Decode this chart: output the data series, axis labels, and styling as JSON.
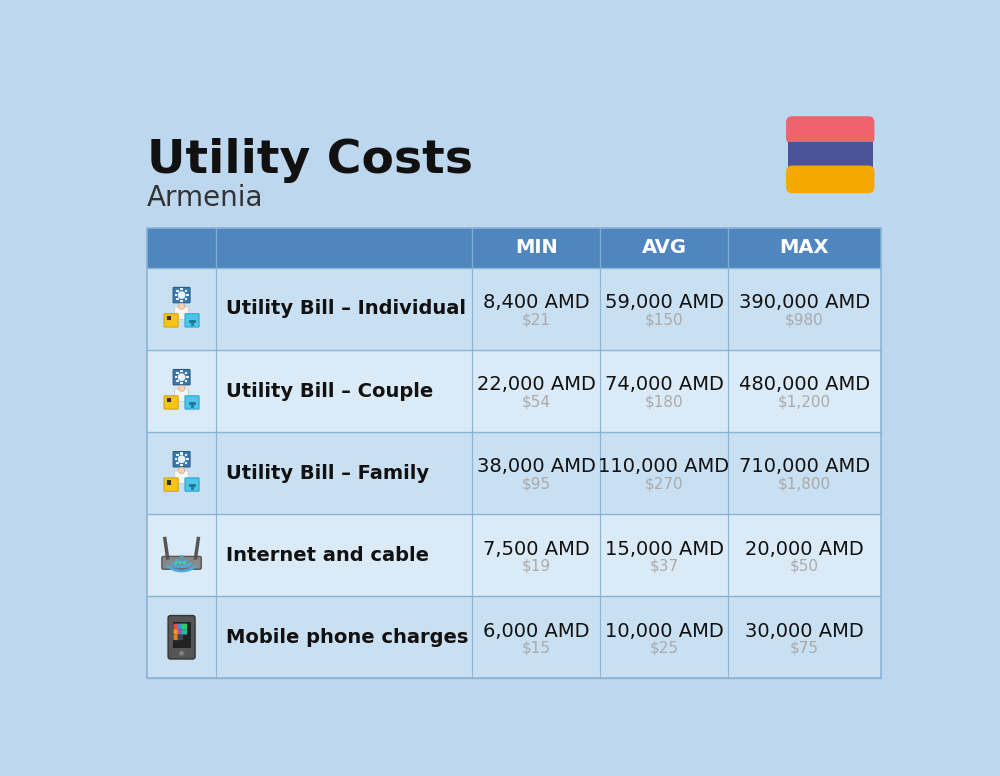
{
  "title": "Utility Costs",
  "subtitle": "Armenia",
  "background_color": "#bdd7ee",
  "header_bg_color": "#4f86c0",
  "header_text_color": "#ffffff",
  "row_bg_color_1": "#c9dff2",
  "row_bg_color_2": "#daeaf7",
  "separator_color": "#8ab4d4",
  "flag_colors": [
    "#f0626e",
    "#4c5399",
    "#f5a800"
  ],
  "title_fontsize": 34,
  "subtitle_fontsize": 20,
  "header_fontsize": 14,
  "label_fontsize": 14,
  "value_fontsize": 14,
  "usd_fontsize": 11,
  "usd_color": "#aaaaaa",
  "rows": [
    {
      "label": "Utility Bill – Individual",
      "min_amd": "8,400 AMD",
      "min_usd": "$21",
      "avg_amd": "59,000 AMD",
      "avg_usd": "$150",
      "max_amd": "390,000 AMD",
      "max_usd": "$980"
    },
    {
      "label": "Utility Bill – Couple",
      "min_amd": "22,000 AMD",
      "min_usd": "$54",
      "avg_amd": "74,000 AMD",
      "avg_usd": "$180",
      "max_amd": "480,000 AMD",
      "max_usd": "$1,200"
    },
    {
      "label": "Utility Bill – Family",
      "min_amd": "38,000 AMD",
      "min_usd": "$95",
      "avg_amd": "110,000 AMD",
      "avg_usd": "$270",
      "max_amd": "710,000 AMD",
      "max_usd": "$1,800"
    },
    {
      "label": "Internet and cable",
      "min_amd": "7,500 AMD",
      "min_usd": "$19",
      "avg_amd": "15,000 AMD",
      "avg_usd": "$37",
      "max_amd": "20,000 AMD",
      "max_usd": "$50"
    },
    {
      "label": "Mobile phone charges",
      "min_amd": "6,000 AMD",
      "min_usd": "$15",
      "avg_amd": "10,000 AMD",
      "avg_usd": "$25",
      "max_amd": "30,000 AMD",
      "max_usd": "$75"
    }
  ]
}
